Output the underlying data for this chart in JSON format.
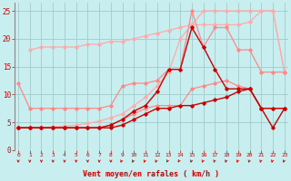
{
  "background_color": "#c8eef0",
  "grid_color": "#a0cccc",
  "xlabel": "Vent moyen/en rafales ( km/h )",
  "xlabel_color": "#cc0000",
  "tick_color": "#cc0000",
  "x_ticks": [
    0,
    1,
    2,
    3,
    4,
    5,
    6,
    7,
    8,
    9,
    10,
    11,
    12,
    13,
    14,
    15,
    16,
    17,
    18,
    19,
    20,
    21,
    22,
    23
  ],
  "y_ticks": [
    0,
    5,
    10,
    15,
    20,
    25
  ],
  "xlim": [
    -0.3,
    23.3
  ],
  "ylim": [
    0,
    26.5
  ],
  "arrow_color": "#cc0000",
  "series": [
    {
      "color": "#ffaaaa",
      "lw": 0.9,
      "x": [
        1,
        2,
        3,
        4,
        5,
        6,
        7,
        8,
        9,
        10,
        11,
        12,
        13,
        14,
        15,
        16,
        17,
        18,
        19,
        20,
        21,
        22,
        23
      ],
      "y": [
        18.0,
        18.5,
        18.5,
        18.5,
        18.5,
        19.0,
        19.0,
        19.5,
        19.5,
        20.0,
        20.5,
        21.0,
        21.5,
        22.0,
        22.5,
        25.0,
        25.0,
        25.0,
        25.0,
        25.0,
        25.0,
        25.0,
        14.0
      ]
    },
    {
      "color": "#ffaaaa",
      "lw": 0.9,
      "x": [
        0,
        1,
        2,
        3,
        4,
        5,
        6,
        7,
        8,
        9,
        10,
        11,
        12,
        13,
        14,
        15,
        16,
        17,
        18,
        19,
        20,
        21,
        22,
        23
      ],
      "y": [
        4.0,
        4.0,
        4.0,
        4.2,
        4.3,
        4.5,
        4.8,
        5.2,
        5.8,
        6.5,
        8.0,
        9.5,
        11.5,
        14.0,
        20.0,
        22.5,
        22.5,
        22.5,
        22.5,
        22.5,
        23.0,
        25.0,
        25.0,
        14.0
      ]
    },
    {
      "color": "#ff8888",
      "lw": 0.9,
      "x": [
        0,
        1,
        2,
        3,
        4,
        5,
        6,
        7,
        8,
        9,
        10,
        11,
        12,
        13,
        14,
        15,
        16,
        17,
        18,
        19,
        20,
        21,
        22,
        23
      ],
      "y": [
        12.0,
        7.5,
        7.5,
        7.5,
        7.5,
        7.5,
        7.5,
        7.5,
        8.0,
        11.5,
        12.0,
        12.0,
        12.5,
        14.5,
        14.5,
        25.0,
        18.5,
        22.0,
        22.0,
        18.0,
        18.0,
        14.0,
        14.0,
        14.0
      ]
    },
    {
      "color": "#ff8888",
      "lw": 0.9,
      "x": [
        0,
        1,
        2,
        3,
        4,
        5,
        6,
        7,
        8,
        9,
        10,
        11,
        12,
        13,
        14,
        15,
        16,
        17,
        18,
        19,
        20,
        21,
        22,
        23
      ],
      "y": [
        4.0,
        4.0,
        4.0,
        4.0,
        4.0,
        4.0,
        4.0,
        4.0,
        4.5,
        5.5,
        6.5,
        7.5,
        8.0,
        8.0,
        8.0,
        11.0,
        11.5,
        12.0,
        12.5,
        11.5,
        11.0,
        7.5,
        7.5,
        7.5
      ]
    },
    {
      "color": "#cc0000",
      "lw": 1.0,
      "x": [
        0,
        1,
        2,
        3,
        4,
        5,
        6,
        7,
        8,
        9,
        10,
        11,
        12,
        13,
        14,
        15,
        16,
        17,
        18,
        19,
        20,
        21,
        22,
        23
      ],
      "y": [
        4.0,
        4.0,
        4.0,
        4.0,
        4.0,
        4.0,
        4.0,
        4.0,
        4.5,
        5.5,
        7.0,
        8.0,
        10.5,
        14.5,
        14.5,
        22.0,
        18.5,
        14.5,
        11.0,
        11.0,
        11.0,
        7.5,
        4.0,
        7.5
      ]
    },
    {
      "color": "#cc0000",
      "lw": 1.0,
      "x": [
        0,
        1,
        2,
        3,
        4,
        5,
        6,
        7,
        8,
        9,
        10,
        11,
        12,
        13,
        14,
        15,
        16,
        17,
        18,
        19,
        20,
        21,
        22,
        23
      ],
      "y": [
        4.0,
        4.0,
        4.0,
        4.0,
        4.0,
        4.0,
        4.0,
        4.0,
        4.0,
        4.5,
        5.5,
        6.5,
        7.5,
        7.5,
        8.0,
        8.0,
        8.5,
        9.0,
        9.5,
        10.5,
        11.0,
        7.5,
        7.5,
        7.5
      ]
    }
  ]
}
